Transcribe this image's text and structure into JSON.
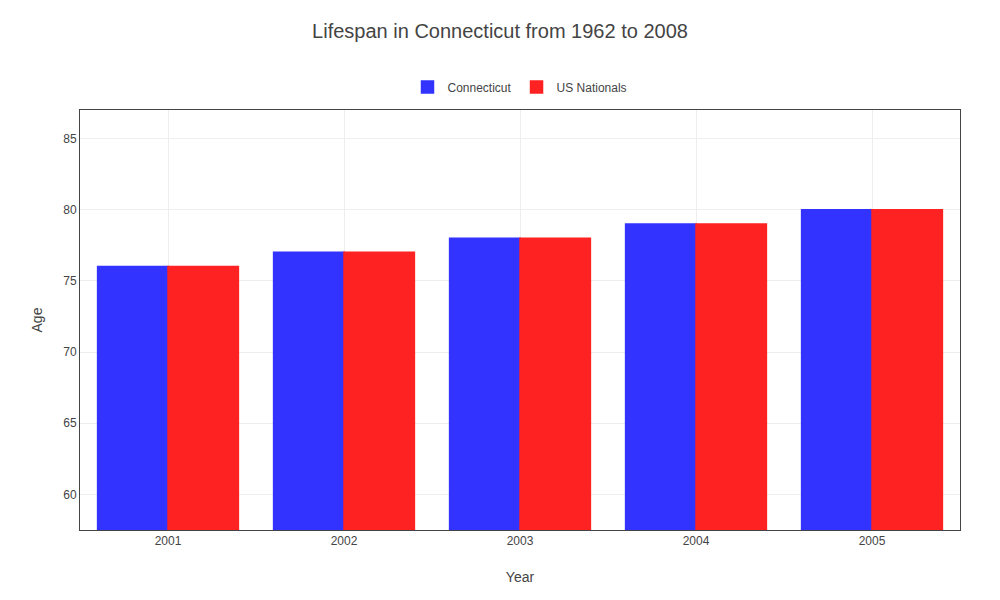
{
  "chart_data": {
    "type": "bar",
    "title": "Lifespan in Connecticut from 1962 to 2008",
    "xlabel": "Year",
    "ylabel": "Age",
    "categories": [
      "2001",
      "2002",
      "2003",
      "2004",
      "2005"
    ],
    "series": [
      {
        "name": "Connecticut",
        "color": "#3333ff",
        "values": [
          76.0,
          77.0,
          78.0,
          79.0,
          80.0
        ]
      },
      {
        "name": "US Nationals",
        "color": "#ff2222",
        "values": [
          76.0,
          77.0,
          78.0,
          79.0,
          80.0
        ]
      }
    ],
    "ylim": [
      57.5,
      87
    ],
    "yticks": [
      60,
      65,
      70,
      75,
      80,
      85
    ],
    "grid": true,
    "legend": "top"
  }
}
